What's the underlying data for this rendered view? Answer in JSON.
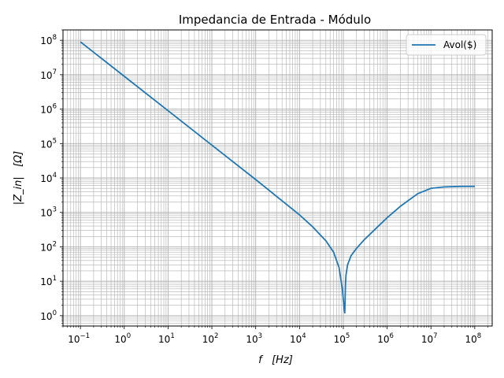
{
  "chart_data": {
    "type": "line",
    "title": "Impedancia de Entrada - Módulo",
    "xlabel": "f   [Hz]",
    "ylabel": "|Z_in|   [Ω]",
    "xscale": "log",
    "yscale": "log",
    "xlim": [
      0.04,
      250000000
    ],
    "ylim": [
      0.5,
      200000000
    ],
    "grid": true,
    "grid_minor": true,
    "legend_position": "top-right",
    "x_ticks": [
      {
        "base": "10",
        "exp": "−1"
      },
      {
        "base": "10",
        "exp": "0"
      },
      {
        "base": "10",
        "exp": "1"
      },
      {
        "base": "10",
        "exp": "2"
      },
      {
        "base": "10",
        "exp": "3"
      },
      {
        "base": "10",
        "exp": "4"
      },
      {
        "base": "10",
        "exp": "5"
      },
      {
        "base": "10",
        "exp": "6"
      },
      {
        "base": "10",
        "exp": "7"
      },
      {
        "base": "10",
        "exp": "8"
      }
    ],
    "y_ticks": [
      {
        "base": "10",
        "exp": "0"
      },
      {
        "base": "10",
        "exp": "1"
      },
      {
        "base": "10",
        "exp": "2"
      },
      {
        "base": "10",
        "exp": "3"
      },
      {
        "base": "10",
        "exp": "4"
      },
      {
        "base": "10",
        "exp": "5"
      },
      {
        "base": "10",
        "exp": "6"
      },
      {
        "base": "10",
        "exp": "7"
      },
      {
        "base": "10",
        "exp": "8"
      }
    ],
    "series": [
      {
        "name": "Avol($)",
        "color": "#1f77b4",
        "x": [
          0.1,
          1,
          10,
          100,
          1000,
          10000,
          20000,
          40000,
          60000,
          80000,
          95000,
          105000,
          108000,
          110000,
          112000,
          115000,
          125000,
          150000,
          200000,
          300000,
          500000,
          1000000,
          2000000,
          5000000,
          10000000,
          20000000,
          50000000,
          100000000
        ],
        "y": [
          90000000,
          9000000,
          900000,
          90000,
          9000,
          850,
          380,
          150,
          70,
          25,
          6,
          1.5,
          1.2,
          3,
          8,
          15,
          30,
          55,
          90,
          160,
          300,
          700,
          1500,
          3500,
          5000,
          5500,
          5700,
          5700
        ]
      }
    ]
  }
}
